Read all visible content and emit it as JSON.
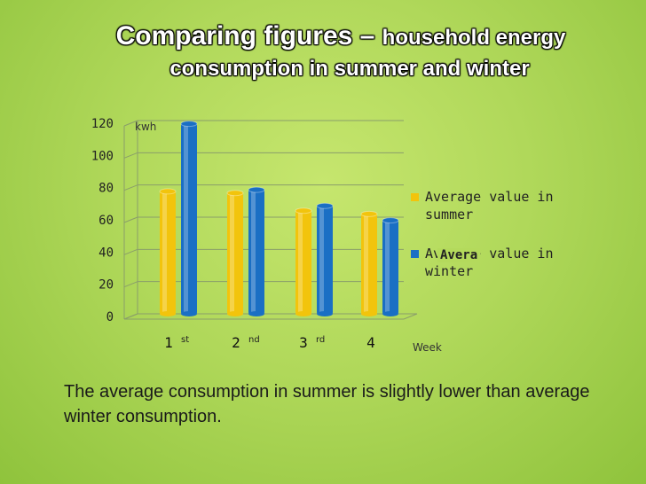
{
  "title": {
    "line1_main": "Comparing figures – ",
    "line1_small": "household  energy",
    "line2": "consumption in summer and winter"
  },
  "caption": "The average consumption in summer is slightly lower than average winter consumption.",
  "legend_overlay": "Avera",
  "colors": {
    "summer": "#f2c40c",
    "winter": "#1a6fc4",
    "axis": "#8a9e6a"
  },
  "chart_data": {
    "type": "bar",
    "categories": [
      "1",
      "2",
      "3",
      "4"
    ],
    "category_suffixes": [
      "st",
      "nd",
      "rd",
      ""
    ],
    "series": [
      {
        "name": "Average value in summer",
        "values": [
          76,
          75,
          64,
          62
        ]
      },
      {
        "name": "Average value in winter",
        "values": [
          118,
          77,
          67,
          58
        ]
      }
    ],
    "ylabel": "kwh",
    "xlabel": "Week",
    "ylim": [
      0,
      120
    ],
    "yticks": [
      0,
      20,
      40,
      60,
      80,
      100,
      120
    ],
    "legend_position": "right"
  }
}
